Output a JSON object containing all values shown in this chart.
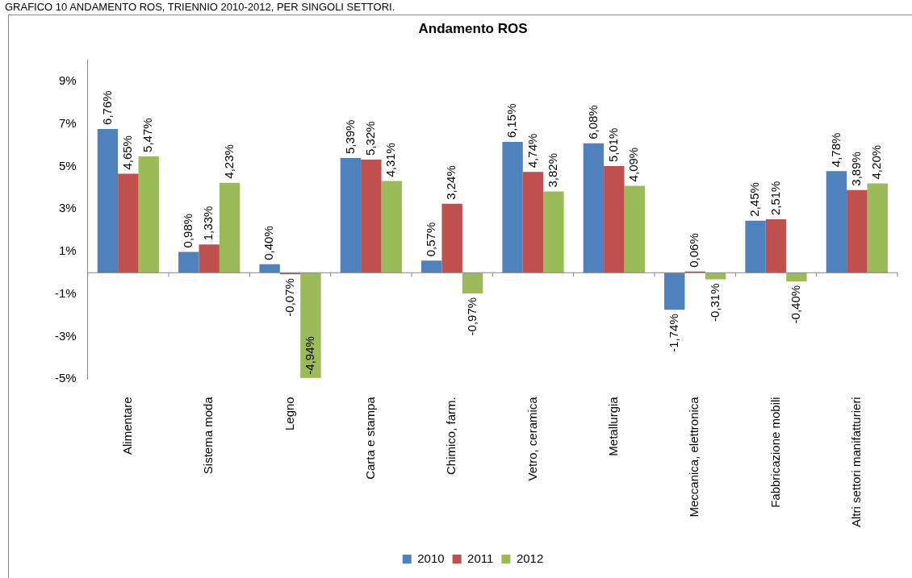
{
  "chart_data": {
    "type": "bar",
    "title": "Andamento ROS",
    "annotations": [
      "GRAFICO 10 ANDAMENTO ROS, TRIENNIO 2010-2012, PER SINGOLI SETTORI."
    ],
    "categories": [
      "Alimentare",
      "Sistema moda",
      "Legno",
      "Carta e stampa",
      "Chimico, farm.",
      "Vetro, ceramica",
      "Metallurgia",
      "Meccanica, elettronica",
      "Fabbricazione mobili",
      "Altri settori manifatturieri"
    ],
    "series": [
      {
        "name": "2010",
        "color": "#4f81bd",
        "values": [
          6.76,
          0.98,
          0.4,
          5.39,
          0.57,
          6.15,
          6.08,
          -1.74,
          2.45,
          4.78
        ],
        "value_labels": [
          "6,76%",
          "0,98%",
          "0,40%",
          "5,39%",
          "0,57%",
          "6,15%",
          "6,08%",
          "-1,74%",
          "2,45%",
          "4,78%"
        ]
      },
      {
        "name": "2011",
        "color": "#c0504d",
        "values": [
          4.65,
          1.33,
          -0.07,
          5.32,
          3.24,
          4.74,
          5.01,
          0.06,
          2.51,
          3.89
        ],
        "value_labels": [
          "4,65%",
          "1,33%",
          "-0,07%",
          "5,32%",
          "3,24%",
          "4,74%",
          "5,01%",
          "0,06%",
          "2,51%",
          "3,89%"
        ]
      },
      {
        "name": "2012",
        "color": "#9bbb59",
        "values": [
          5.47,
          4.23,
          -4.94,
          4.31,
          -0.97,
          3.82,
          4.09,
          -0.31,
          -0.4,
          4.2
        ],
        "value_labels": [
          "5,47%",
          "4,23%",
          "-4,94%",
          "4,31%",
          "-0,97%",
          "3,82%",
          "4,09%",
          "-0,31%",
          "-0,40%",
          "4,20%"
        ]
      }
    ],
    "ylim": [
      -5,
      10
    ],
    "yticks": [
      {
        "value": -5,
        "label": "-5%"
      },
      {
        "value": -3,
        "label": "-3%"
      },
      {
        "value": -1,
        "label": "-1%"
      },
      {
        "value": 1,
        "label": "1%"
      },
      {
        "value": 3,
        "label": "3%"
      },
      {
        "value": 5,
        "label": "5%"
      },
      {
        "value": 7,
        "label": "7%"
      },
      {
        "value": 9,
        "label": "9%"
      }
    ],
    "grid": false,
    "legend": "bottom"
  }
}
